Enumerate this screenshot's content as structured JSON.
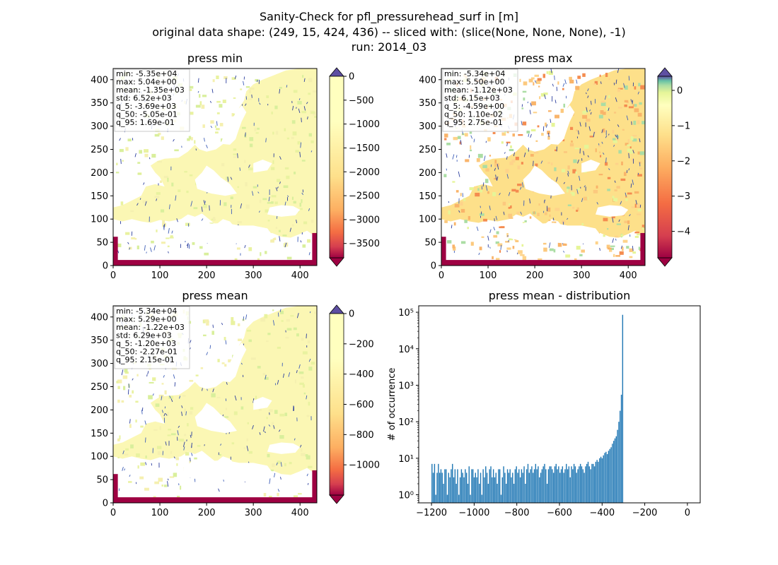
{
  "figure": {
    "suptitle_lines": [
      "Sanity-Check for pfl_pressurehead_surf in [m]",
      "original data shape: (249, 15, 424, 436) -- sliced with: (slice(None, None, None), -1)",
      "run: 2014_03"
    ]
  },
  "chart_data": [
    {
      "type": "heatmap",
      "title": "press min",
      "xticks": [
        0,
        100,
        200,
        300,
        400
      ],
      "yticks": [
        0,
        50,
        100,
        150,
        200,
        250,
        300,
        350,
        400
      ],
      "xlim": [
        0,
        436
      ],
      "ylim": [
        0,
        424
      ],
      "stats": [
        "min: -5.35e+04",
        "max: 5.04e+00",
        "mean: -1.35e+03",
        "std: 6.52e+03",
        "q_5: -3.69e+03",
        "q_50: -5.05e-01",
        "q_95: 1.69e-01"
      ],
      "colorbar": {
        "vmin": -3800,
        "vmax": 0,
        "ticks": [
          0,
          -500,
          -1000,
          -1500,
          -2000,
          -2500,
          -3000,
          -3500
        ],
        "ticklabels": [
          "0",
          "−500",
          "−1000",
          "−1500",
          "−2000",
          "−2500",
          "−3000",
          "−3500"
        ],
        "extend": "both",
        "colormap": "Spectral"
      }
    },
    {
      "type": "heatmap",
      "title": "press max",
      "xticks": [
        0,
        100,
        200,
        300,
        400
      ],
      "yticks": [
        0,
        50,
        100,
        150,
        200,
        250,
        300,
        350,
        400
      ],
      "xlim": [
        0,
        436
      ],
      "ylim": [
        0,
        424
      ],
      "stats": [
        "min: -5.34e+04",
        "max: 5.50e+00",
        "mean: -1.12e+03",
        "std: 6.15e+03",
        "q_5: -4.59e+00",
        "q_50: 1.10e-02",
        "q_95: 2.75e-01"
      ],
      "colorbar": {
        "vmin": -4.75,
        "vmax": 0.4,
        "ticks": [
          0,
          -1,
          -2,
          -3,
          -4
        ],
        "ticklabels": [
          "0",
          "−1",
          "−2",
          "−3",
          "−4"
        ],
        "extend": "both",
        "colormap": "Spectral"
      }
    },
    {
      "type": "heatmap",
      "title": "press mean",
      "xticks": [
        0,
        100,
        200,
        300,
        400
      ],
      "yticks": [
        0,
        50,
        100,
        150,
        200,
        250,
        300,
        350,
        400
      ],
      "xlim": [
        0,
        436
      ],
      "ylim": [
        0,
        424
      ],
      "stats": [
        "min: -5.34e+04",
        "max: 5.29e+00",
        "mean: -1.22e+03",
        "std: 6.29e+03",
        "q_5: -1.20e+03",
        "q_50: -2.27e-01",
        "q_95: 2.15e-01"
      ],
      "colorbar": {
        "vmin": -1200,
        "vmax": 0,
        "ticks": [
          0,
          -200,
          -400,
          -600,
          -800,
          -1000
        ],
        "ticklabels": [
          "0",
          "−200",
          "−400",
          "−600",
          "−800",
          "−1000"
        ],
        "extend": "both",
        "colormap": "Spectral"
      }
    },
    {
      "type": "bar",
      "title": "press mean - distribution",
      "ylabel": "# of occurrence",
      "xlabel": "",
      "yscale": "log",
      "xlim": [
        -1260,
        60
      ],
      "ylim": [
        0.6,
        150000
      ],
      "xticks": [
        -1200,
        -1000,
        -800,
        -600,
        -400,
        -200,
        0
      ],
      "xticklabels": [
        "−1200",
        "−1000",
        "−800",
        "−600",
        "−400",
        "−200",
        "0"
      ],
      "yticklabels": [
        "10⁰",
        "10¹",
        "10²",
        "10³",
        "10⁴",
        "10⁵"
      ],
      "bar_color": "#1f77b4",
      "bins": {
        "start": -1200,
        "width": 6,
        "counts": [
          7,
          4,
          7,
          1,
          4,
          7,
          4,
          5,
          4,
          2,
          5,
          5,
          1,
          4,
          3,
          5,
          7,
          3,
          5,
          2,
          5,
          1,
          3,
          5,
          4,
          3,
          5,
          4,
          2,
          6,
          1,
          5,
          5,
          3,
          4,
          3,
          5,
          2,
          4,
          1,
          5,
          3,
          6,
          4,
          2,
          5,
          6,
          3,
          5,
          3,
          4,
          2,
          5,
          5,
          1,
          3,
          6,
          4,
          2,
          5,
          4,
          5,
          3,
          4,
          2,
          5,
          6,
          4,
          5,
          3,
          5,
          4,
          6,
          2,
          5,
          7,
          4,
          5,
          6,
          4,
          5,
          7,
          5,
          6,
          3,
          4,
          5,
          6,
          7,
          5,
          2,
          5,
          6,
          6,
          5,
          4,
          6,
          7,
          5,
          6,
          4,
          5,
          6,
          4,
          5,
          7,
          5,
          6,
          3,
          6,
          5,
          7,
          6,
          4,
          5,
          6,
          7,
          6,
          5,
          4,
          6,
          7,
          8,
          6,
          5,
          7,
          7,
          6,
          8,
          9,
          8,
          10,
          11,
          10,
          12,
          14,
          15,
          13,
          16,
          18,
          20,
          25,
          30,
          35,
          40,
          60,
          100,
          200,
          550,
          85000
        ]
      }
    }
  ]
}
